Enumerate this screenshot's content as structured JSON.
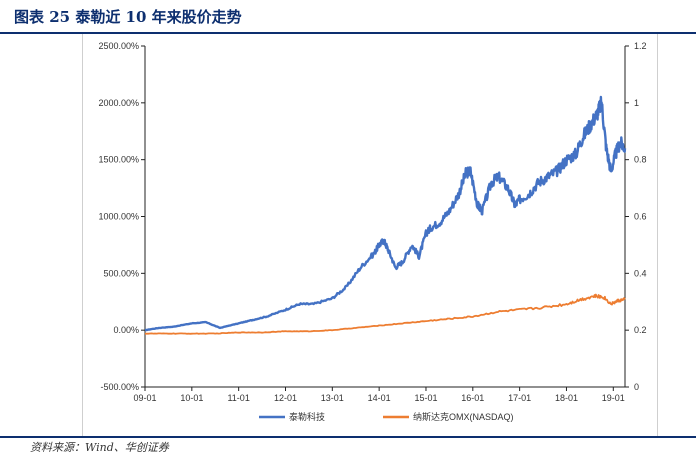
{
  "header": {
    "title": "图表 25   泰勒近 10 年来股价走势"
  },
  "footer": {
    "source": "资料来源：Wind、华创证券"
  },
  "chart_data": {
    "type": "line",
    "x_tick_labels": [
      "09-01",
      "10-01",
      "11-01",
      "12-01",
      "13-01",
      "14-01",
      "15-01",
      "16-01",
      "17-01",
      "18-01",
      "19-01"
    ],
    "y_left": {
      "ticks": [
        "-500.00%",
        "0.00%",
        "500.00%",
        "1000.00%",
        "1500.00%",
        "2000.00%",
        "2500.00%"
      ],
      "range": [
        -500,
        2500
      ]
    },
    "y_right": {
      "ticks": [
        "0",
        "0.2",
        "0.4",
        "0.6",
        "0.8",
        "1",
        "1.2"
      ],
      "range": [
        0,
        1.2
      ]
    },
    "legend_position": "bottom",
    "grid": false,
    "series": [
      {
        "name": "泰勒科技",
        "color": "#4472c4",
        "x": [
          2009.0,
          2009.3,
          2009.6,
          2010.0,
          2010.3,
          2010.6,
          2011.0,
          2011.3,
          2011.6,
          2012.0,
          2012.3,
          2012.6,
          2013.0,
          2013.3,
          2013.6,
          2013.9,
          2014.0,
          2014.1,
          2014.2,
          2014.35,
          2014.5,
          2014.7,
          2014.85,
          2015.0,
          2015.1,
          2015.3,
          2015.5,
          2015.7,
          2015.85,
          2015.95,
          2016.1,
          2016.2,
          2016.4,
          2016.55,
          2016.75,
          2016.9,
          2017.0,
          2017.2,
          2017.4,
          2017.6,
          2017.8,
          2018.0,
          2018.2,
          2018.35,
          2018.5,
          2018.65,
          2018.75,
          2018.85,
          2018.95,
          2019.05,
          2019.15,
          2019.25
        ],
        "values": [
          0,
          20,
          30,
          60,
          70,
          20,
          60,
          90,
          120,
          180,
          230,
          230,
          280,
          380,
          550,
          680,
          750,
          790,
          700,
          550,
          600,
          750,
          650,
          850,
          900,
          950,
          1050,
          1200,
          1380,
          1400,
          1100,
          1050,
          1300,
          1350,
          1250,
          1100,
          1150,
          1200,
          1300,
          1350,
          1400,
          1500,
          1550,
          1700,
          1800,
          1900,
          2000,
          1600,
          1400,
          1550,
          1650,
          1600
        ]
      },
      {
        "name": "纳斯达克OMX(NASDAQ)",
        "color": "#ed7d31",
        "x": [
          2009.0,
          2009.5,
          2010.0,
          2010.5,
          2011.0,
          2011.5,
          2012.0,
          2012.5,
          2013.0,
          2013.5,
          2014.0,
          2014.5,
          2015.0,
          2015.5,
          2016.0,
          2016.5,
          2017.0,
          2017.5,
          2018.0,
          2018.3,
          2018.6,
          2018.8,
          2018.95,
          2019.1,
          2019.25
        ],
        "values": [
          -30,
          -30,
          -30,
          -30,
          -20,
          -20,
          -10,
          -10,
          0,
          20,
          40,
          60,
          80,
          100,
          120,
          160,
          180,
          200,
          230,
          270,
          300,
          290,
          230,
          260,
          270
        ]
      }
    ]
  }
}
